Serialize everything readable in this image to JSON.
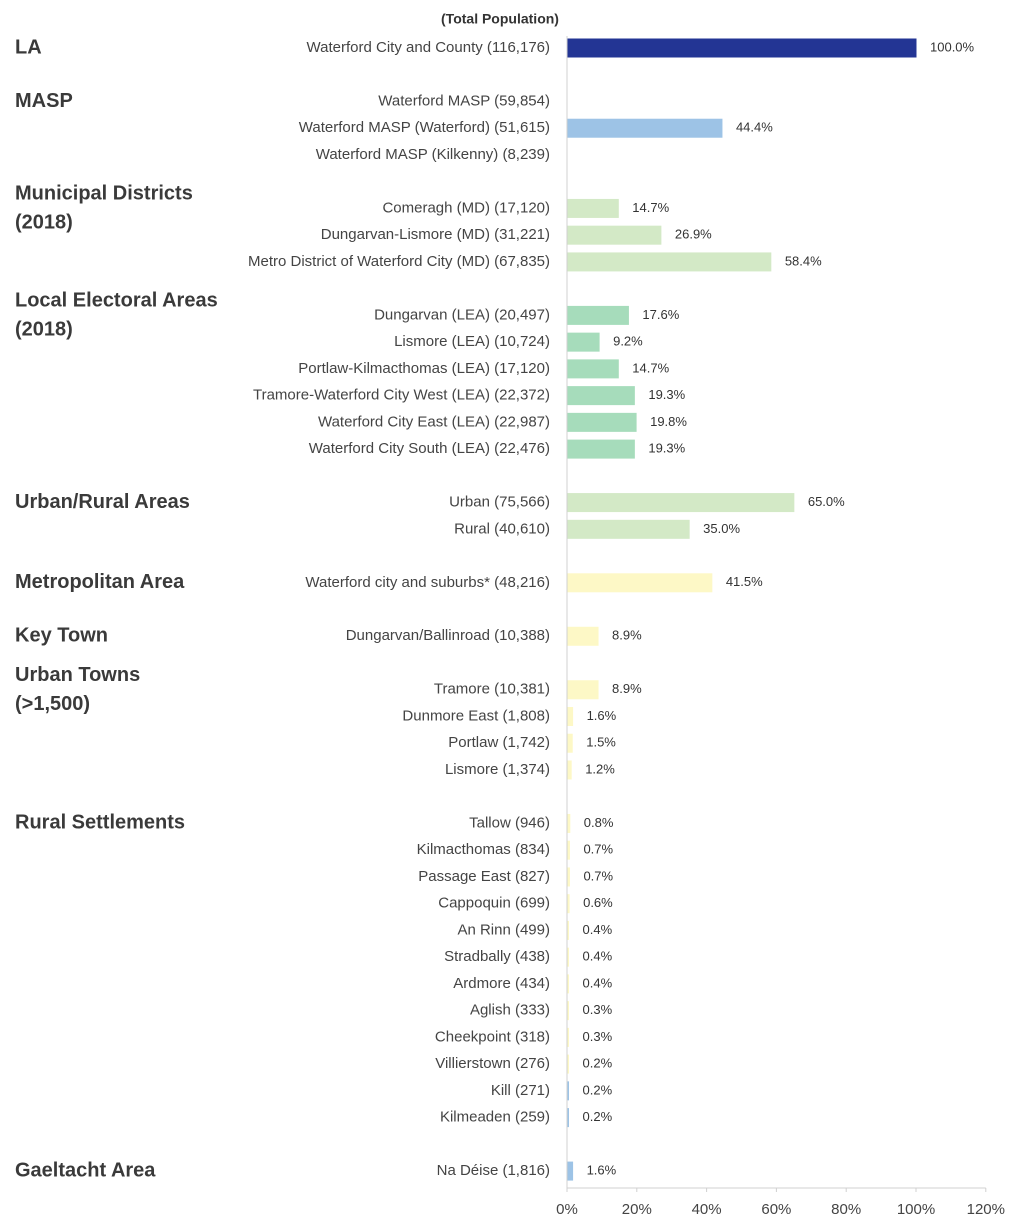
{
  "chart_data": {
    "type": "bar",
    "orientation": "horizontal",
    "column_title": "(Total Population)",
    "xlim": [
      0,
      120
    ],
    "xticks": [
      {
        "value": 0,
        "label": "0%"
      },
      {
        "value": 20,
        "label": "20%"
      },
      {
        "value": 40,
        "label": "40%"
      },
      {
        "value": 60,
        "label": "60%"
      },
      {
        "value": 80,
        "label": "80%"
      },
      {
        "value": 100,
        "label": "100%"
      },
      {
        "value": 120,
        "label": "120%"
      }
    ],
    "groups": [
      {
        "name": [
          "LA"
        ],
        "color": "#233594",
        "rows": [
          {
            "label": "Waterford City and County (116,176)",
            "value": 100.0,
            "value_label": "100.0%"
          }
        ]
      },
      {
        "name": [
          "MASP"
        ],
        "color": "#9dc3e6",
        "rows": [
          {
            "label": "Waterford MASP (59,854)",
            "value": null
          },
          {
            "label": "Waterford MASP (Waterford) (51,615)",
            "value": 44.4,
            "value_label": "44.4%"
          },
          {
            "label": "Waterford MASP (Kilkenny) (8,239)",
            "value": null
          }
        ]
      },
      {
        "name": [
          "Municipal Districts",
          "(2018)"
        ],
        "color": "#d3e9c6",
        "rows": [
          {
            "label": "Comeragh (MD) (17,120)",
            "value": 14.7,
            "value_label": "14.7%"
          },
          {
            "label": "Dungarvan-Lismore (MD) (31,221)",
            "value": 26.9,
            "value_label": "26.9%"
          },
          {
            "label": "Metro District of Waterford City (MD) (67,835)",
            "value": 58.4,
            "value_label": "58.4%"
          }
        ]
      },
      {
        "name": [
          "Local Electoral Areas",
          "(2018)"
        ],
        "color": "#a6dcbb",
        "rows": [
          {
            "label": "Dungarvan (LEA) (20,497)",
            "value": 17.6,
            "value_label": "17.6%"
          },
          {
            "label": "Lismore (LEA) (10,724)",
            "value": 9.2,
            "value_label": "9.2%"
          },
          {
            "label": "Portlaw-Kilmacthomas (LEA) (17,120)",
            "value": 14.7,
            "value_label": "14.7%"
          },
          {
            "label": "Tramore-Waterford City West (LEA) (22,372)",
            "value": 19.3,
            "value_label": "19.3%"
          },
          {
            "label": "Waterford City East (LEA) (22,987)",
            "value": 19.8,
            "value_label": "19.8%"
          },
          {
            "label": "Waterford City South (LEA) (22,476)",
            "value": 19.3,
            "value_label": "19.3%"
          }
        ]
      },
      {
        "name": [
          "Urban/Rural Areas"
        ],
        "color": "#d3e9c6",
        "rows": [
          {
            "label": "Urban (75,566)",
            "value": 65.0,
            "value_label": "65.0%"
          },
          {
            "label": "Rural (40,610)",
            "value": 35.0,
            "value_label": "35.0%"
          }
        ]
      },
      {
        "name": [
          "Metropolitan Area"
        ],
        "color": "#fdf8c6",
        "rows": [
          {
            "label": "Waterford city and suburbs* (48,216)",
            "value": 41.5,
            "value_label": "41.5%"
          }
        ]
      },
      {
        "name": [
          "Key Town"
        ],
        "color": "#fdf8c6",
        "rows": [
          {
            "label": "Dungarvan/Ballinroad (10,388)",
            "value": 8.9,
            "value_label": "8.9%"
          }
        ]
      },
      {
        "name": [
          "Urban Towns",
          "(>1,500)"
        ],
        "color": "#fdf8c6",
        "rows": [
          {
            "label": "Tramore (10,381)",
            "value": 8.9,
            "value_label": "8.9%"
          },
          {
            "label": "Dunmore East (1,808)",
            "value": 1.6,
            "value_label": "1.6%"
          },
          {
            "label": "Portlaw (1,742)",
            "value": 1.5,
            "value_label": "1.5%"
          },
          {
            "label": "Lismore (1,374)",
            "value": 1.2,
            "value_label": "1.2%"
          }
        ]
      },
      {
        "name": [
          "Rural Settlements"
        ],
        "color": "#fdf8c6",
        "rows": [
          {
            "label": "Tallow (946)",
            "value": 0.8,
            "value_label": "0.8%"
          },
          {
            "label": "Kilmacthomas (834)",
            "value": 0.7,
            "value_label": "0.7%"
          },
          {
            "label": "Passage East (827)",
            "value": 0.7,
            "value_label": "0.7%"
          },
          {
            "label": "Cappoquin (699)",
            "value": 0.6,
            "value_label": "0.6%"
          },
          {
            "label": "An Rinn (499)",
            "value": 0.4,
            "value_label": "0.4%"
          },
          {
            "label": "Stradbally (438)",
            "value": 0.4,
            "value_label": "0.4%"
          },
          {
            "label": "Ardmore (434)",
            "value": 0.4,
            "value_label": "0.4%"
          },
          {
            "label": "Aglish (333)",
            "value": 0.3,
            "value_label": "0.3%"
          },
          {
            "label": "Cheekpoint (318)",
            "value": 0.3,
            "value_label": "0.3%"
          },
          {
            "label": "Villierstown (276)",
            "value": 0.2,
            "value_label": "0.2%"
          },
          {
            "label": "Kill (271)",
            "value": 0.2,
            "value_label": "0.2%",
            "color": "#9dc3e6"
          },
          {
            "label": "Kilmeaden (259)",
            "value": 0.2,
            "value_label": "0.2%",
            "color": "#9dc3e6"
          }
        ]
      },
      {
        "name": [
          "Gaeltacht Area"
        ],
        "color": "#9dc3e6",
        "rows": [
          {
            "label": "Na Déise (1,816)",
            "value": 1.6,
            "value_label": "1.6%"
          }
        ]
      }
    ]
  }
}
